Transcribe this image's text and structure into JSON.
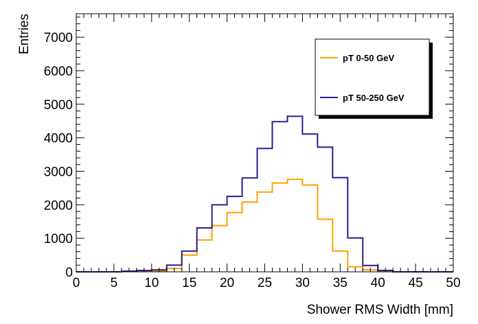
{
  "chart_data": {
    "type": "histogram",
    "xlabel": "Shower RMS Width [mm]",
    "ylabel": "Entries",
    "xlim": [
      0,
      50
    ],
    "ylim": [
      0,
      7700
    ],
    "grid": false,
    "legend_position": "top-right",
    "bin_edges": [
      0,
      2,
      4,
      6,
      8,
      10,
      12,
      14,
      16,
      18,
      20,
      22,
      24,
      26,
      28,
      30,
      32,
      34,
      36,
      38,
      40,
      42,
      44,
      46,
      48,
      50
    ],
    "x_ticks": [
      0,
      5,
      10,
      15,
      20,
      25,
      30,
      35,
      40,
      45,
      50
    ],
    "x_tick_labels": [
      "0",
      "5",
      "10",
      "15",
      "20",
      "25",
      "30",
      "35",
      "40",
      "45",
      "50"
    ],
    "y_ticks": [
      0,
      1000,
      2000,
      3000,
      4000,
      5000,
      6000,
      7000
    ],
    "y_tick_labels": [
      "0",
      "1000",
      "2000",
      "3000",
      "4000",
      "5000",
      "6000",
      "7000"
    ],
    "series": [
      {
        "name": "pT 0-50 GeV",
        "color": "#ff9f00",
        "values": [
          0,
          0,
          0,
          10,
          20,
          30,
          100,
          500,
          950,
          1380,
          1770,
          2080,
          2380,
          2650,
          2760,
          2590,
          1570,
          620,
          150,
          60,
          20,
          0,
          0,
          0,
          0
        ]
      },
      {
        "name": "pT 50-250 GeV",
        "color": "#2e1a94",
        "values": [
          0,
          0,
          0,
          20,
          40,
          60,
          200,
          620,
          1310,
          2000,
          2250,
          2800,
          3680,
          4480,
          4640,
          4110,
          3720,
          2810,
          1010,
          190,
          40,
          0,
          0,
          0,
          0
        ]
      }
    ]
  }
}
